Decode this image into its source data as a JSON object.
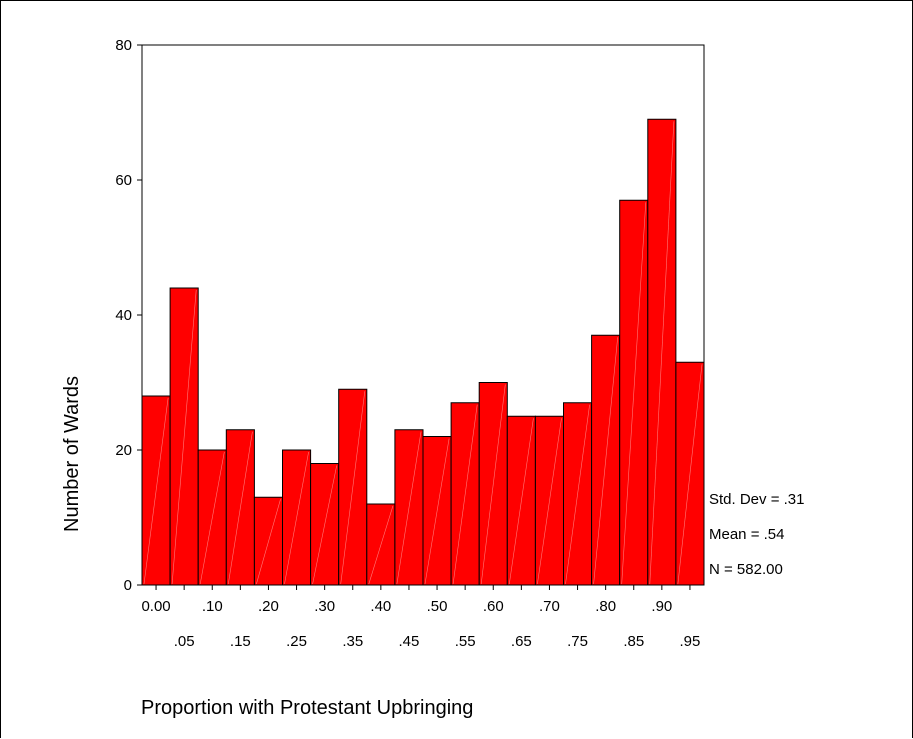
{
  "chart_data": {
    "type": "bar",
    "subtype": "histogram",
    "xlabel": "Proportion with Protestant Upbringing",
    "ylabel": "Number of Wards",
    "categories": [
      "0.00",
      ".05",
      ".10",
      ".15",
      ".20",
      ".25",
      ".30",
      ".35",
      ".40",
      ".45",
      ".50",
      ".55",
      ".60",
      ".65",
      ".70",
      ".75",
      ".80",
      ".85",
      ".90",
      ".95"
    ],
    "values": [
      28,
      44,
      20,
      23,
      13,
      20,
      18,
      29,
      12,
      23,
      22,
      27,
      30,
      25,
      25,
      27,
      37,
      57,
      69,
      33
    ],
    "ylim": [
      0,
      80
    ],
    "yticks": [
      "0",
      "20",
      "40",
      "60",
      "80"
    ],
    "grid": false,
    "bar_color": "#ff0000",
    "stats": {
      "std_dev": "Std. Dev = .31",
      "mean": "Mean = .54",
      "n": "N = 582.00"
    }
  }
}
